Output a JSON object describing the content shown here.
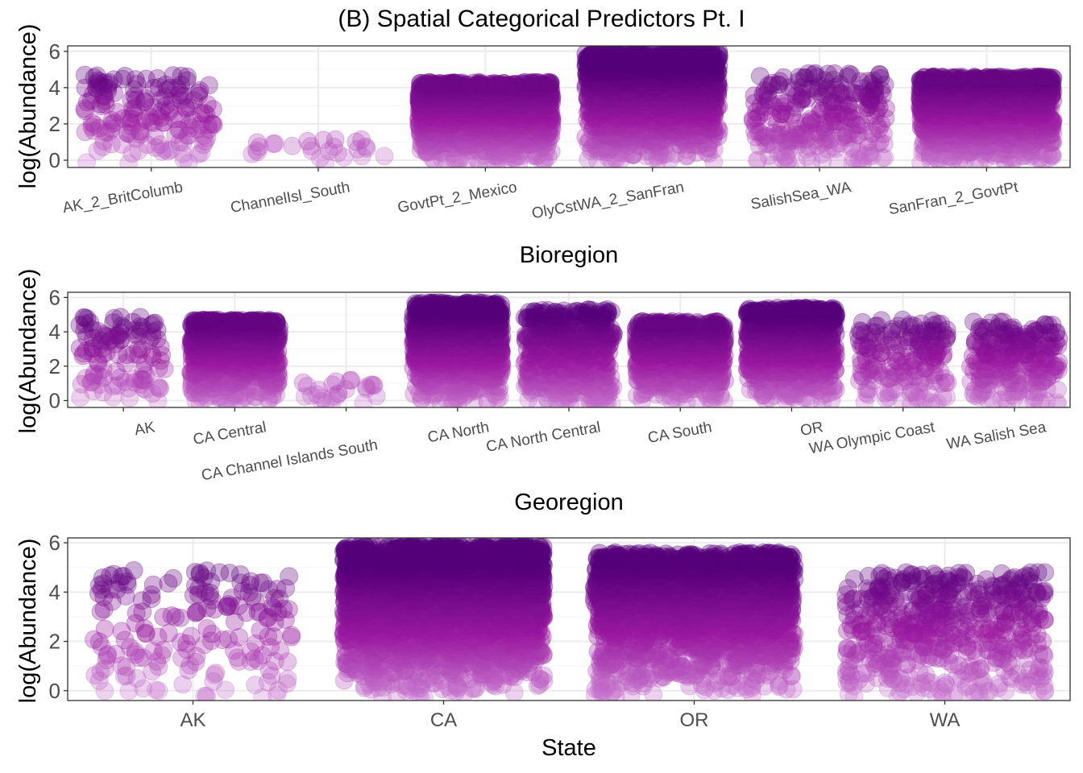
{
  "title": "(B) Spatial Categorical Predictors Pt. I",
  "colors": {
    "low": "#cc7fd3",
    "mid": "#9a1aa0",
    "high": "#55007a",
    "grid_major": "#ebebeb",
    "grid_minor": "#f5f5f5",
    "panel_border": "#333333"
  },
  "chart_data": [
    {
      "type": "scatter",
      "xlabel": "Bioregion",
      "ylabel": "log(Abundance)",
      "ylim": [
        -0.4,
        6.3
      ],
      "yticks": [
        0,
        2,
        4,
        6
      ],
      "grid": true,
      "categories": [
        "AK_2_BritColumb",
        "ChannelIsl_South",
        "GovtPt_2_Mexico",
        "OlyCstWA_2_SanFran",
        "SalishSea_WA",
        "SanFran_2_GovtPt"
      ],
      "groups": [
        {
          "category": "AK_2_BritColumb",
          "n_points": 160,
          "y_max": 4.7,
          "density": "sparse"
        },
        {
          "category": "ChannelIsl_South",
          "n_points": 26,
          "y_max": 1.2,
          "density": "sparse"
        },
        {
          "category": "GovtPt_2_Mexico",
          "n_points": 1400,
          "y_max": 4.3,
          "density": "dense"
        },
        {
          "category": "OlyCstWA_2_SanFran",
          "n_points": 1500,
          "y_max": 6.0,
          "density": "dense"
        },
        {
          "category": "SalishSea_WA",
          "n_points": 260,
          "y_max": 4.8,
          "density": "medium"
        },
        {
          "category": "SanFran_2_GovtPt",
          "n_points": 1400,
          "y_max": 4.6,
          "density": "dense"
        }
      ]
    },
    {
      "type": "scatter",
      "xlabel": "Georegion",
      "ylabel": "log(Abundance)",
      "ylim": [
        -0.4,
        6.3
      ],
      "yticks": [
        0,
        2,
        4,
        6
      ],
      "grid": true,
      "categories": [
        "AK",
        "CA Central",
        "CA Channel Islands South",
        "CA North",
        "CA North Central",
        "CA South",
        "OR",
        "WA Olympic Coast",
        "WA Salish Sea"
      ],
      "groups": [
        {
          "category": "AK",
          "n_points": 110,
          "y_max": 4.9,
          "density": "sparse"
        },
        {
          "category": "CA Central",
          "n_points": 900,
          "y_max": 4.7,
          "density": "dense"
        },
        {
          "category": "CA Channel Islands South",
          "n_points": 26,
          "y_max": 1.2,
          "density": "sparse"
        },
        {
          "category": "CA North",
          "n_points": 1100,
          "y_max": 5.7,
          "density": "dense"
        },
        {
          "category": "CA North Central",
          "n_points": 500,
          "y_max": 5.3,
          "density": "medium"
        },
        {
          "category": "CA South",
          "n_points": 700,
          "y_max": 4.6,
          "density": "dense"
        },
        {
          "category": "OR",
          "n_points": 900,
          "y_max": 5.4,
          "density": "dense"
        },
        {
          "category": "WA Olympic Coast",
          "n_points": 170,
          "y_max": 4.7,
          "density": "sparse"
        },
        {
          "category": "WA Salish Sea",
          "n_points": 230,
          "y_max": 4.6,
          "density": "medium"
        }
      ]
    },
    {
      "type": "scatter",
      "xlabel": "State",
      "ylabel": "log(Abundance)",
      "ylim": [
        -0.4,
        6.2
      ],
      "yticks": [
        0,
        2,
        4,
        6
      ],
      "grid": true,
      "categories": [
        "AK",
        "CA",
        "OR",
        "WA"
      ],
      "groups": [
        {
          "category": "AK",
          "n_points": 180,
          "y_max": 4.9,
          "density": "sparse"
        },
        {
          "category": "CA",
          "n_points": 2600,
          "y_max": 5.9,
          "density": "dense"
        },
        {
          "category": "OR",
          "n_points": 1700,
          "y_max": 5.6,
          "density": "dense"
        },
        {
          "category": "WA",
          "n_points": 500,
          "y_max": 4.8,
          "density": "medium"
        }
      ]
    }
  ]
}
